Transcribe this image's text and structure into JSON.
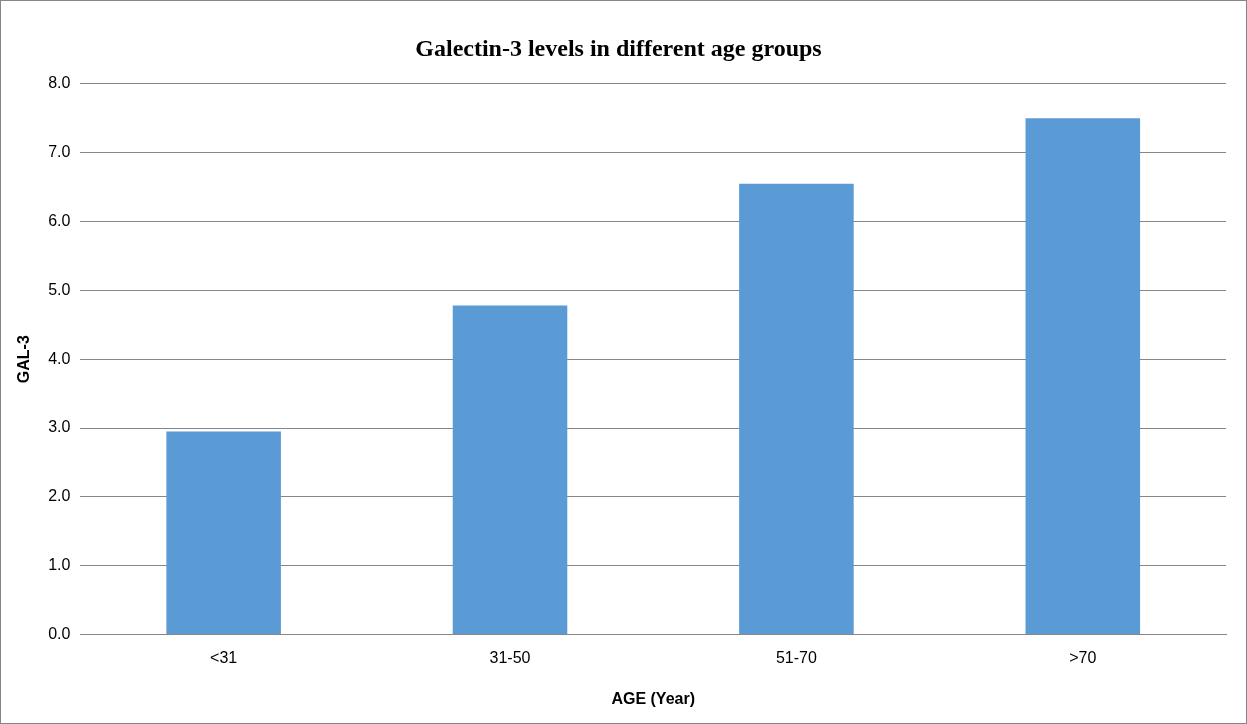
{
  "chart_data": {
    "type": "bar",
    "title": "Galectin-3 levels in different age groups",
    "xlabel": "AGE (Year)",
    "ylabel": "GAL-3",
    "categories": [
      "<31",
      "31-50",
      "51-70",
      ">70"
    ],
    "values": [
      2.95,
      4.78,
      6.55,
      7.5
    ],
    "color": "#5b9bd5",
    "ylim": [
      0,
      8
    ],
    "yticks": [
      {
        "value": 0,
        "label": "0.0"
      },
      {
        "value": 1,
        "label": "1.0"
      },
      {
        "value": 2,
        "label": "2.0"
      },
      {
        "value": 3,
        "label": "3.0"
      },
      {
        "value": 4,
        "label": "4.0"
      },
      {
        "value": 5,
        "label": "5.0"
      },
      {
        "value": 6,
        "label": "6.0"
      },
      {
        "value": 7,
        "label": "7.0"
      },
      {
        "value": 8,
        "label": "8.0"
      }
    ],
    "grid": "y"
  }
}
